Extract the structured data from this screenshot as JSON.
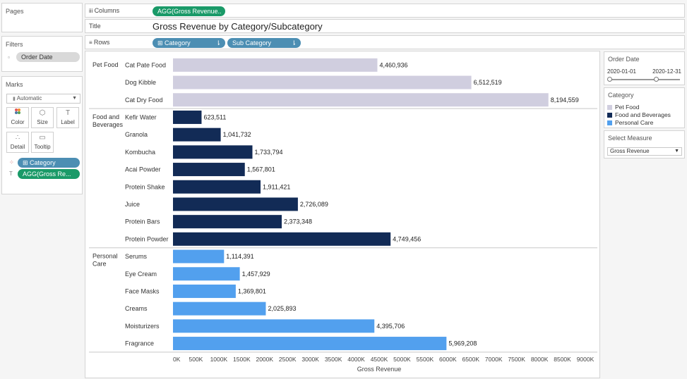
{
  "pages": {
    "title": "Pages"
  },
  "filters": {
    "title": "Filters",
    "pill": "Order Date"
  },
  "marks": {
    "title": "Marks",
    "type": "Automatic",
    "buttons": [
      {
        "label": "Color",
        "icon": "color-dots-icon"
      },
      {
        "label": "Size",
        "icon": "size-icon"
      },
      {
        "label": "Label",
        "icon": "label-icon"
      },
      {
        "label": "Detail",
        "icon": "detail-icon"
      },
      {
        "label": "Tooltip",
        "icon": "tooltip-icon"
      }
    ],
    "pills": [
      "Category",
      "AGG(Gross Re..."
    ]
  },
  "shelves": {
    "columns_label": "Columns",
    "columns_pill": "AGG(Gross Revenue..",
    "title_label": "Title",
    "title_text": "Gross Revenue by Category/Subcategory",
    "rows_label": "Rows",
    "rows_pills": [
      "Category",
      "Sub Category"
    ]
  },
  "right": {
    "order_date": {
      "title": "Order Date",
      "start": "2020-01-01",
      "end": "2020-12-31"
    },
    "category_legend": {
      "title": "Category",
      "items": [
        {
          "label": "Pet Food",
          "color": "#d0cedf"
        },
        {
          "label": "Food and Beverages",
          "color": "#122b56"
        },
        {
          "label": "Personal Care",
          "color": "#52a0ee"
        }
      ]
    },
    "measure": {
      "title": "Select Measure",
      "value": "Gross Revenue"
    }
  },
  "chart_data": {
    "type": "bar",
    "orientation": "horizontal",
    "title": "Gross Revenue by Category/Subcategory",
    "xlabel": "Gross Revenue",
    "xlim": [
      0,
      9000000
    ],
    "xticks": [
      "0K",
      "500K",
      "1000K",
      "1500K",
      "2000K",
      "2500K",
      "3000K",
      "3500K",
      "4000K",
      "4500K",
      "5000K",
      "5500K",
      "6000K",
      "6500K",
      "7000K",
      "7500K",
      "8000K",
      "8500K",
      "9000K"
    ],
    "groups": [
      {
        "category": "Pet Food",
        "color": "#d0cedf",
        "items": [
          {
            "name": "Cat Pate Food",
            "value": 4460936,
            "label": "4,460,936"
          },
          {
            "name": "Dog Kibble",
            "value": 6512519,
            "label": "6,512,519"
          },
          {
            "name": "Cat Dry Food",
            "value": 8194559,
            "label": "8,194,559"
          }
        ]
      },
      {
        "category": "Food and Beverages",
        "color": "#122b56",
        "items": [
          {
            "name": "Kefir Water",
            "value": 623511,
            "label": "623,511"
          },
          {
            "name": "Granola",
            "value": 1041732,
            "label": "1,041,732"
          },
          {
            "name": "Kombucha",
            "value": 1733794,
            "label": "1,733,794"
          },
          {
            "name": "Acai Powder",
            "value": 1567801,
            "label": "1,567,801"
          },
          {
            "name": "Protein Shake",
            "value": 1911421,
            "label": "1,911,421"
          },
          {
            "name": "Juice",
            "value": 2726089,
            "label": "2,726,089"
          },
          {
            "name": "Protein Bars",
            "value": 2373348,
            "label": "2,373,348"
          },
          {
            "name": "Protein Powder",
            "value": 4749456,
            "label": "4,749,456"
          }
        ]
      },
      {
        "category": "Personal Care",
        "color": "#52a0ee",
        "items": [
          {
            "name": "Serums",
            "value": 1114391,
            "label": "1,114,391"
          },
          {
            "name": "Eye Cream",
            "value": 1457929,
            "label": "1,457,929"
          },
          {
            "name": "Face Masks",
            "value": 1369801,
            "label": "1,369,801"
          },
          {
            "name": "Creams",
            "value": 2025893,
            "label": "2,025,893"
          },
          {
            "name": "Moisturizers",
            "value": 4395706,
            "label": "4,395,706"
          },
          {
            "name": "Fragrance",
            "value": 5969208,
            "label": "5,969,208"
          }
        ]
      }
    ]
  }
}
